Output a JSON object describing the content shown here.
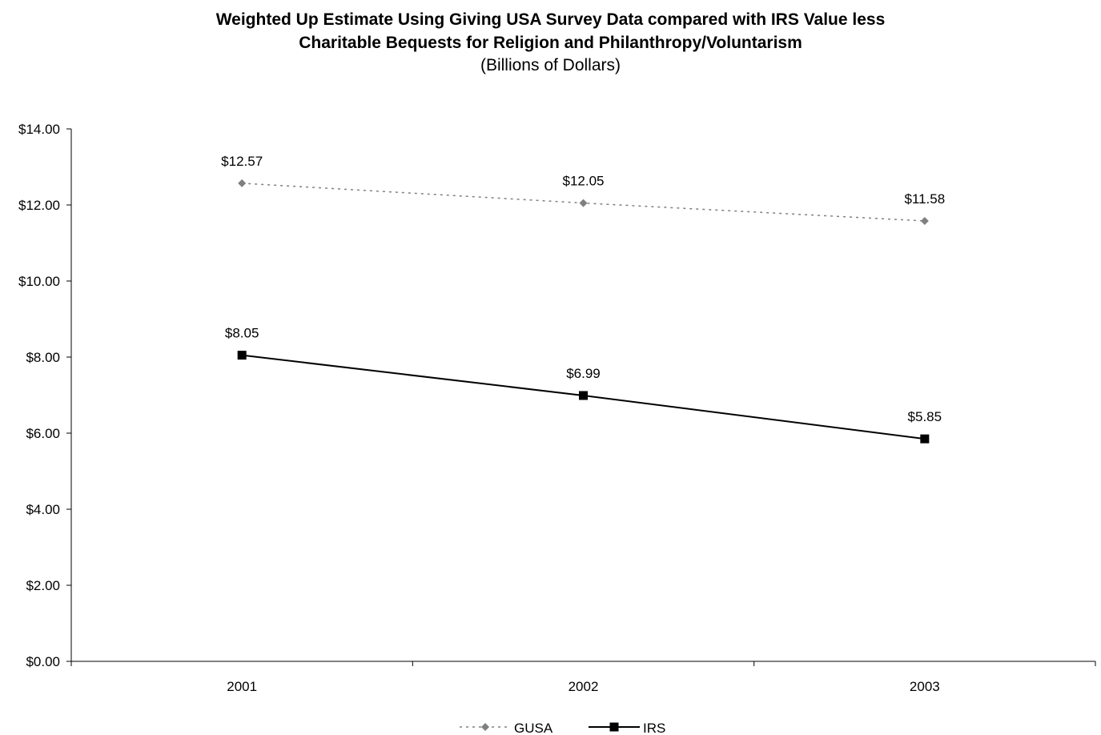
{
  "chart_data": {
    "type": "line",
    "title_line1": "Weighted Up Estimate Using Giving USA Survey Data compared with IRS Value less",
    "title_line2": "Charitable Bequests for Religion and Philanthropy/Voluntarism",
    "subtitle": "(Billions of Dollars)",
    "categories": [
      "2001",
      "2002",
      "2003"
    ],
    "ylim": [
      0,
      14
    ],
    "y_ticks": [
      0,
      2,
      4,
      6,
      8,
      10,
      12,
      14
    ],
    "y_tick_labels": [
      "$0.00",
      "$2.00",
      "$4.00",
      "$6.00",
      "$8.00",
      "$10.00",
      "$12.00",
      "$14.00"
    ],
    "grid": false,
    "legend_position": "bottom",
    "series": [
      {
        "name": "GUSA",
        "values": [
          12.57,
          12.05,
          11.58
        ],
        "labels": [
          "$12.57",
          "$12.05",
          "$11.58"
        ],
        "color": "#808080",
        "line_style": "dotted",
        "marker": "diamond"
      },
      {
        "name": "IRS",
        "values": [
          8.05,
          6.99,
          5.85
        ],
        "labels": [
          "$8.05",
          "$6.99",
          "$5.85"
        ],
        "color": "#000000",
        "line_style": "solid",
        "marker": "square"
      }
    ]
  }
}
